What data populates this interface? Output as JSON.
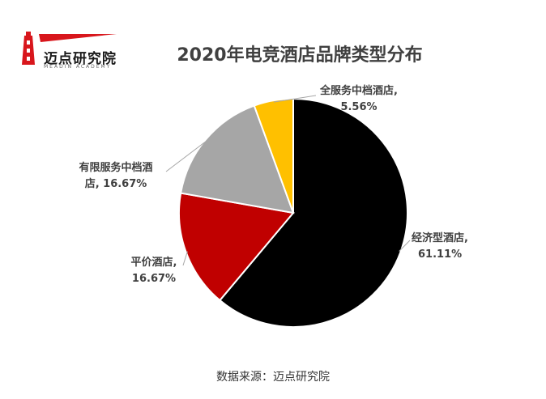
{
  "logo": {
    "text": "迈点研究院",
    "subtext": "MEADIN ACADEMY",
    "colors": {
      "primary": "#d8161c",
      "text": "#1a1a1a"
    }
  },
  "source": "数据来源：迈点研究院",
  "chart_data": {
    "type": "pie",
    "title": "2020年电竞酒店品牌类型分布",
    "slices": [
      {
        "name": "经济型酒店",
        "value": 61.11,
        "label_lines": [
          "经济型酒店,",
          "61.11%"
        ],
        "color": "#000000"
      },
      {
        "name": "平价酒店",
        "value": 16.67,
        "label_lines": [
          "平价酒店,",
          "16.67%"
        ],
        "color": "#c00000"
      },
      {
        "name": "有限服务中档酒店",
        "value": 16.67,
        "label_lines": [
          "有限服务中档酒",
          "店, 16.67%"
        ],
        "color": "#a6a6a6"
      },
      {
        "name": "全服务中档酒店",
        "value": 5.56,
        "label_lines": [
          "全服务中档酒店,",
          "5.56%"
        ],
        "color": "#ffc000"
      }
    ],
    "start": "12 o'clock",
    "direction": "clockwise",
    "slice_border_color": "#ffffff",
    "leader_line_color": "#a6a6a6",
    "legend": "none"
  }
}
